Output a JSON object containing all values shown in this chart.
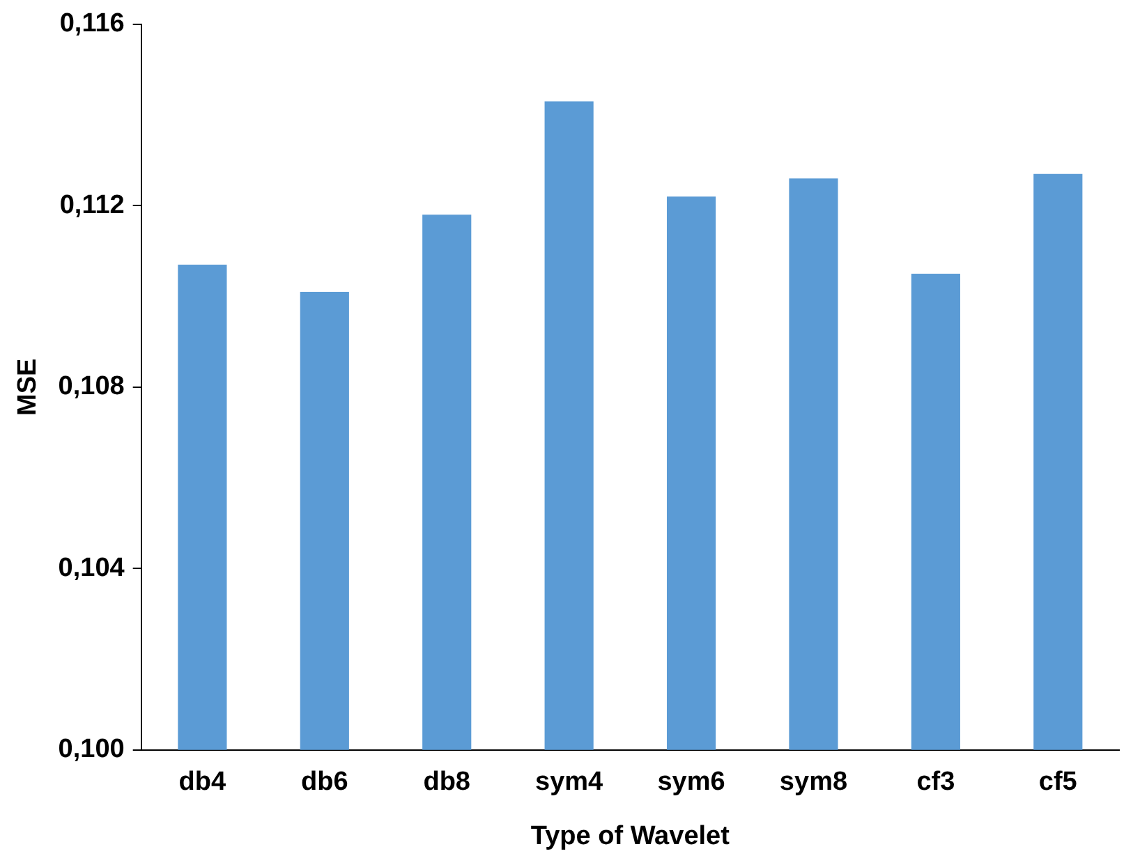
{
  "chart_data": {
    "type": "bar",
    "xlabel": "Type of Wavelet",
    "ylabel": "MSE",
    "categories": [
      "db4",
      "db6",
      "db8",
      "sym4",
      "sym6",
      "sym8",
      "cf3",
      "cf5"
    ],
    "values": [
      0.1107,
      0.1101,
      0.1118,
      0.1143,
      0.1122,
      0.1126,
      0.1105,
      0.1127
    ],
    "color": "#5b9bd5",
    "ylim": [
      0.1,
      0.116
    ],
    "yticks": [
      {
        "value": 0.1,
        "label": "0,100"
      },
      {
        "value": 0.104,
        "label": "0,104"
      },
      {
        "value": 0.108,
        "label": "0,108"
      },
      {
        "value": 0.112,
        "label": "0,112"
      },
      {
        "value": 0.116,
        "label": "0,116"
      }
    ],
    "grid": false,
    "legend": false
  }
}
